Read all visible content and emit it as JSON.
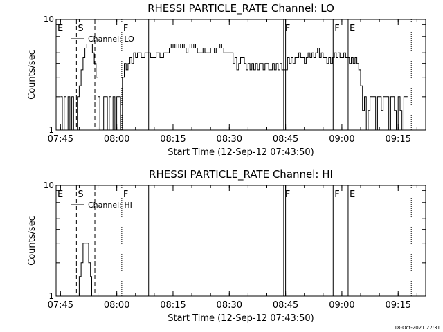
{
  "stamp": "18-Oct-2021 22:31",
  "chart_data": [
    {
      "type": "line",
      "title": "RHESSI PARTICLE_RATE Channel: LO",
      "xlabel": "Start Time (12-Sep-12 07:43:50)",
      "ylabel": "Counts/sec",
      "yscale": "log",
      "ylim": [
        1,
        10
      ],
      "y_ticks": [
        "1",
        "10"
      ],
      "xlim": [
        "07:43:50",
        "09:22:20"
      ],
      "x_ticks": [
        "07:45",
        "08:00",
        "08:15",
        "08:30",
        "08:45",
        "09:00",
        "09:15"
      ],
      "legend": {
        "placement": "top-left",
        "label": "Channel: LO"
      },
      "flags": [
        {
          "label": "E",
          "t": "07:43:50",
          "style": "none"
        },
        {
          "label": "S",
          "t": "07:49:15",
          "style": "dashed"
        },
        {
          "label": "",
          "t": "07:54:10",
          "style": "dashed"
        },
        {
          "label": "F",
          "t": "08:01:20",
          "style": "dotted"
        },
        {
          "label": "",
          "t": "08:08:30",
          "style": "solid"
        },
        {
          "label": "F",
          "t": "08:44:30",
          "style": "solid"
        },
        {
          "label": "",
          "t": "08:45:00",
          "style": "solid"
        },
        {
          "label": "F",
          "t": "08:57:40",
          "style": "solid"
        },
        {
          "label": "E",
          "t": "09:01:40",
          "style": "solid"
        },
        {
          "label": "",
          "t": "09:18:30",
          "style": "dotted"
        }
      ],
      "series": [
        {
          "name": "Channel: LO",
          "points": [
            [
              "07:45:00",
              2
            ],
            [
              "07:45:30",
              1
            ],
            [
              "07:46:00",
              2
            ],
            [
              "07:46:30",
              1
            ],
            [
              "07:47:00",
              2
            ],
            [
              "07:47:30",
              1
            ],
            [
              "07:48:00",
              2
            ],
            [
              "07:48:30",
              1
            ],
            [
              "07:49:00",
              1
            ],
            [
              "07:49:30",
              2
            ],
            [
              "07:50:00",
              2.5
            ],
            [
              "07:50:30",
              3.5
            ],
            [
              "07:51:00",
              4.5
            ],
            [
              "07:51:30",
              5.5
            ],
            [
              "07:52:00",
              6
            ],
            [
              "07:52:30",
              6
            ],
            [
              "07:53:00",
              6
            ],
            [
              "07:53:30",
              5
            ],
            [
              "07:54:00",
              4
            ],
            [
              "07:54:30",
              3
            ],
            [
              "07:55:00",
              2
            ],
            [
              "07:55:30",
              1
            ],
            [
              "07:56:00",
              1
            ],
            [
              "07:56:30",
              2
            ],
            [
              "07:57:00",
              2
            ],
            [
              "07:57:30",
              1
            ],
            [
              "07:58:00",
              2
            ],
            [
              "07:58:30",
              1
            ],
            [
              "07:59:00",
              2
            ],
            [
              "07:59:30",
              1
            ],
            [
              "08:00:00",
              2
            ],
            [
              "08:00:30",
              2
            ],
            [
              "08:01:00",
              1
            ],
            [
              "08:01:30",
              3
            ],
            [
              "08:02:00",
              4
            ],
            [
              "08:02:30",
              3.5
            ],
            [
              "08:03:00",
              4
            ],
            [
              "08:03:30",
              4.5
            ],
            [
              "08:04:00",
              4
            ],
            [
              "08:04:30",
              5
            ],
            [
              "08:05:00",
              4.5
            ],
            [
              "08:05:30",
              5
            ],
            [
              "08:06:00",
              5
            ],
            [
              "08:06:30",
              4.5
            ],
            [
              "08:07:00",
              4.5
            ],
            [
              "08:07:30",
              5
            ],
            [
              "08:08:00",
              5
            ],
            [
              "08:08:30",
              5
            ],
            [
              "08:09:00",
              4.5
            ],
            [
              "08:09:30",
              4.5
            ],
            [
              "08:10:00",
              4.5
            ],
            [
              "08:10:30",
              5
            ],
            [
              "08:11:00",
              5
            ],
            [
              "08:11:30",
              4.5
            ],
            [
              "08:12:00",
              4.5
            ],
            [
              "08:12:30",
              5
            ],
            [
              "08:13:00",
              5
            ],
            [
              "08:13:30",
              5
            ],
            [
              "08:14:00",
              5.5
            ],
            [
              "08:14:30",
              6
            ],
            [
              "08:15:00",
              5.5
            ],
            [
              "08:15:30",
              6
            ],
            [
              "08:16:00",
              5.5
            ],
            [
              "08:16:30",
              6
            ],
            [
              "08:17:00",
              5.5
            ],
            [
              "08:17:30",
              6
            ],
            [
              "08:18:00",
              5.5
            ],
            [
              "08:18:30",
              5
            ],
            [
              "08:19:00",
              5.5
            ],
            [
              "08:19:30",
              6
            ],
            [
              "08:20:00",
              5.5
            ],
            [
              "08:20:30",
              6
            ],
            [
              "08:21:00",
              5.5
            ],
            [
              "08:21:30",
              5
            ],
            [
              "08:22:00",
              5
            ],
            [
              "08:22:30",
              5
            ],
            [
              "08:23:00",
              5.5
            ],
            [
              "08:23:30",
              5
            ],
            [
              "08:24:00",
              5
            ],
            [
              "08:24:30",
              5
            ],
            [
              "08:25:00",
              5.5
            ],
            [
              "08:25:30",
              5.5
            ],
            [
              "08:26:00",
              5
            ],
            [
              "08:26:30",
              5.5
            ],
            [
              "08:27:00",
              5.5
            ],
            [
              "08:27:30",
              6
            ],
            [
              "08:28:00",
              5.5
            ],
            [
              "08:28:30",
              5
            ],
            [
              "08:29:00",
              5
            ],
            [
              "08:29:30",
              5
            ],
            [
              "08:30:00",
              5
            ],
            [
              "08:30:30",
              5
            ],
            [
              "08:31:00",
              4
            ],
            [
              "08:31:30",
              4.5
            ],
            [
              "08:32:00",
              3.5
            ],
            [
              "08:32:30",
              4
            ],
            [
              "08:33:00",
              4.5
            ],
            [
              "08:33:30",
              4.5
            ],
            [
              "08:34:00",
              4
            ],
            [
              "08:34:30",
              3.5
            ],
            [
              "08:35:00",
              4
            ],
            [
              "08:35:30",
              3.5
            ],
            [
              "08:36:00",
              4
            ],
            [
              "08:36:30",
              3.5
            ],
            [
              "08:37:00",
              4
            ],
            [
              "08:37:30",
              3.5
            ],
            [
              "08:38:00",
              4
            ],
            [
              "08:38:30",
              4
            ],
            [
              "08:39:00",
              3.5
            ],
            [
              "08:39:30",
              4
            ],
            [
              "08:40:00",
              4
            ],
            [
              "08:40:30",
              3.5
            ],
            [
              "08:41:00",
              3.5
            ],
            [
              "08:41:30",
              4
            ],
            [
              "08:42:00",
              3.5
            ],
            [
              "08:42:30",
              4
            ],
            [
              "08:43:00",
              3.5
            ],
            [
              "08:43:30",
              4
            ],
            [
              "08:44:00",
              3.5
            ],
            [
              "08:44:30",
              3.5
            ],
            [
              "08:45:00",
              3.5
            ],
            [
              "08:45:30",
              4.5
            ],
            [
              "08:46:00",
              4
            ],
            [
              "08:46:30",
              4.5
            ],
            [
              "08:47:00",
              4
            ],
            [
              "08:47:30",
              4.5
            ],
            [
              "08:48:00",
              4.5
            ],
            [
              "08:48:30",
              5
            ],
            [
              "08:49:00",
              4.5
            ],
            [
              "08:49:30",
              4.5
            ],
            [
              "08:50:00",
              4
            ],
            [
              "08:50:30",
              4.5
            ],
            [
              "08:51:00",
              5
            ],
            [
              "08:51:30",
              4.5
            ],
            [
              "08:52:00",
              5
            ],
            [
              "08:52:30",
              4.5
            ],
            [
              "08:53:00",
              5
            ],
            [
              "08:53:30",
              5.5
            ],
            [
              "08:54:00",
              4.5
            ],
            [
              "08:54:30",
              5
            ],
            [
              "08:55:00",
              4.5
            ],
            [
              "08:55:30",
              4.5
            ],
            [
              "08:56:00",
              4
            ],
            [
              "08:56:30",
              4.5
            ],
            [
              "08:57:00",
              4
            ],
            [
              "08:57:30",
              4.5
            ],
            [
              "08:58:00",
              5
            ],
            [
              "08:58:30",
              4.5
            ],
            [
              "08:59:00",
              5
            ],
            [
              "08:59:30",
              4.5
            ],
            [
              "09:00:00",
              4.5
            ],
            [
              "09:00:30",
              5
            ],
            [
              "09:01:00",
              4.5
            ],
            [
              "09:01:30",
              4.5
            ],
            [
              "09:02:00",
              4
            ],
            [
              "09:02:30",
              4.5
            ],
            [
              "09:03:00",
              4
            ],
            [
              "09:03:30",
              4.5
            ],
            [
              "09:04:00",
              4
            ],
            [
              "09:04:30",
              3.5
            ],
            [
              "09:05:00",
              2.5
            ],
            [
              "09:05:30",
              1.5
            ],
            [
              "09:06:00",
              2
            ],
            [
              "09:06:30",
              1
            ],
            [
              "09:07:00",
              1.5
            ],
            [
              "09:07:30",
              2
            ],
            [
              "09:08:00",
              2
            ],
            [
              "09:08:30",
              2
            ],
            [
              "09:09:00",
              1
            ],
            [
              "09:09:30",
              2
            ],
            [
              "09:10:00",
              2
            ],
            [
              "09:10:30",
              1.5
            ],
            [
              "09:11:00",
              2
            ],
            [
              "09:11:30",
              2
            ],
            [
              "09:12:00",
              2
            ],
            [
              "09:12:30",
              1
            ],
            [
              "09:13:00",
              2
            ],
            [
              "09:13:30",
              2
            ],
            [
              "09:14:00",
              1.5
            ],
            [
              "09:14:30",
              1
            ],
            [
              "09:15:00",
              2
            ],
            [
              "09:15:30",
              1.5
            ],
            [
              "09:16:00",
              1
            ],
            [
              "09:16:30",
              2
            ],
            [
              "09:17:00",
              2
            ],
            [
              "09:17:30",
              2
            ]
          ]
        }
      ]
    },
    {
      "type": "line",
      "title": "RHESSI PARTICLE_RATE Channel: HI",
      "xlabel": "Start Time (12-Sep-12 07:43:50)",
      "ylabel": "Counts/sec",
      "yscale": "log",
      "ylim": [
        1,
        10
      ],
      "y_ticks": [
        "1",
        "10"
      ],
      "xlim": [
        "07:43:50",
        "09:22:20"
      ],
      "x_ticks": [
        "07:45",
        "08:00",
        "08:15",
        "08:30",
        "08:45",
        "09:00",
        "09:15"
      ],
      "legend": {
        "placement": "top-left",
        "label": "Channel: HI"
      },
      "flags": [
        {
          "label": "E",
          "t": "07:43:50",
          "style": "none"
        },
        {
          "label": "S",
          "t": "07:49:15",
          "style": "dashed"
        },
        {
          "label": "",
          "t": "07:54:10",
          "style": "dashed"
        },
        {
          "label": "F",
          "t": "08:01:20",
          "style": "dotted"
        },
        {
          "label": "",
          "t": "08:08:30",
          "style": "solid"
        },
        {
          "label": "F",
          "t": "08:44:30",
          "style": "solid"
        },
        {
          "label": "",
          "t": "08:45:00",
          "style": "solid"
        },
        {
          "label": "F",
          "t": "08:57:40",
          "style": "solid"
        },
        {
          "label": "E",
          "t": "09:01:40",
          "style": "solid"
        },
        {
          "label": "",
          "t": "09:18:30",
          "style": "dotted"
        }
      ],
      "series": [
        {
          "name": "Channel: HI",
          "points": [
            [
              "07:49:40",
              1
            ],
            [
              "07:50:00",
              1.5
            ],
            [
              "07:50:30",
              2
            ],
            [
              "07:51:00",
              3
            ],
            [
              "07:51:30",
              3
            ],
            [
              "07:52:00",
              3
            ],
            [
              "07:52:30",
              2
            ],
            [
              "07:53:00",
              1.5
            ],
            [
              "07:53:20",
              1
            ]
          ]
        }
      ]
    }
  ]
}
